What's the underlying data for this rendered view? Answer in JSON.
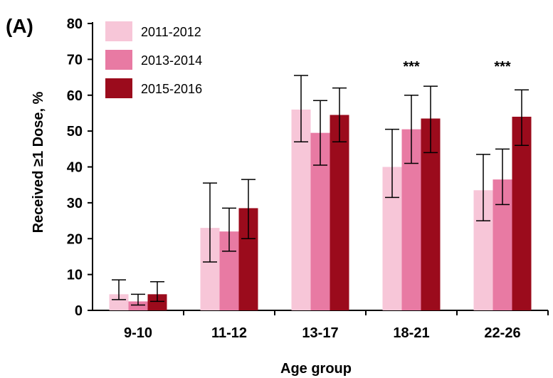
{
  "chart_data": {
    "type": "bar",
    "panel_label": "(A)",
    "categories": [
      "9-10",
      "11-12",
      "13-17",
      "18-21",
      "22-26"
    ],
    "xlabel": "Age group",
    "ylabel": "Received ≥1 Dose, %",
    "ylim": [
      0,
      80
    ],
    "yticks": [
      0,
      10,
      20,
      30,
      40,
      50,
      60,
      70,
      80
    ],
    "grid": false,
    "legend_position": "top-left",
    "series": [
      {
        "name": "2011-2012",
        "color": "#f7c6d8",
        "values": [
          4.5,
          23,
          56,
          40,
          33.5
        ],
        "error_low": [
          3,
          13.5,
          47,
          31.5,
          25
        ],
        "error_high": [
          8.5,
          35.5,
          65.5,
          50.5,
          43.5
        ]
      },
      {
        "name": "2013-2014",
        "color": "#e87aa3",
        "values": [
          2.5,
          22,
          49.5,
          50.5,
          36.5
        ],
        "error_low": [
          1.5,
          16.5,
          40.5,
          41,
          29.5
        ],
        "error_high": [
          4.5,
          28.5,
          58.5,
          60,
          45
        ]
      },
      {
        "name": "2015-2016",
        "color": "#9b0b1c",
        "values": [
          4.5,
          28.5,
          54.5,
          53.5,
          54
        ],
        "error_low": [
          2.5,
          20,
          47,
          44,
          46
        ],
        "error_high": [
          8,
          36.5,
          62,
          62.5,
          61.5
        ]
      }
    ],
    "annotations": [
      {
        "category": "18-21",
        "text": "***"
      },
      {
        "category": "22-26",
        "text": "***"
      }
    ]
  }
}
